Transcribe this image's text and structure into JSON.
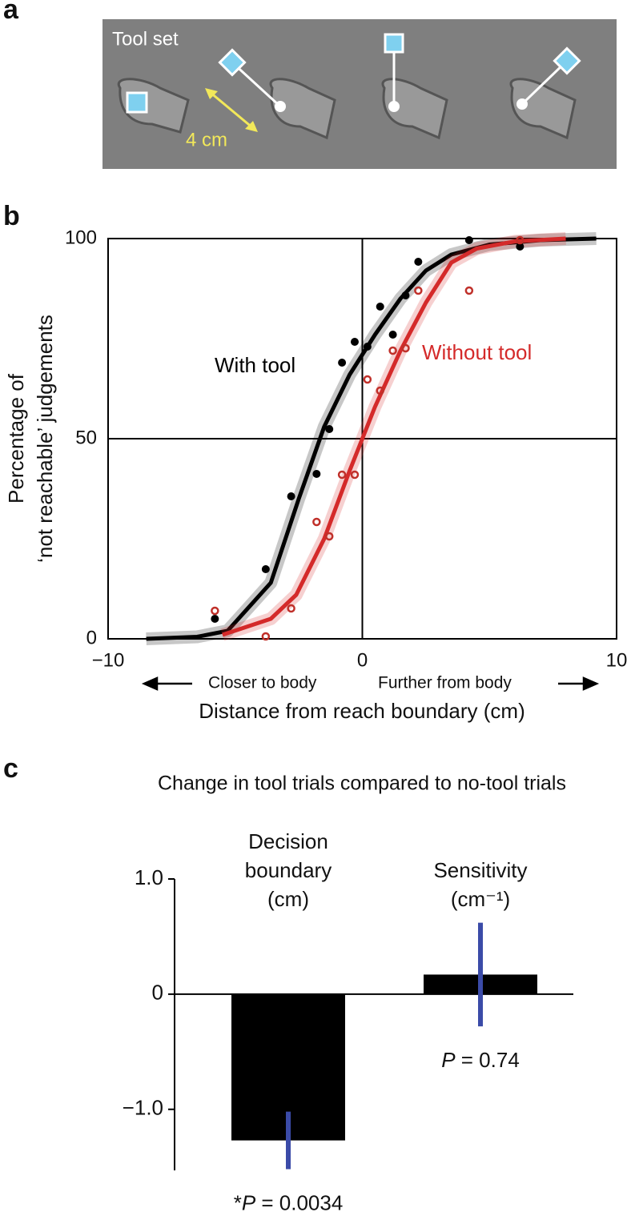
{
  "panel_labels": [
    "a",
    "b",
    "c"
  ],
  "tool_set": {
    "title": "Tool set",
    "scale_label": "4 cm"
  },
  "chart_data": [
    {
      "type": "line",
      "x_label": "Distance from reach boundary (cm)",
      "y_label": [
        "Percentage of",
        "‘not reachable’ judgements"
      ],
      "direction_labels": [
        "Closer to body",
        "Further from body"
      ],
      "xlim": [
        -10,
        10
      ],
      "xticks": [
        {
          "value": -10,
          "label": "−10"
        },
        0,
        10
      ],
      "ylim": [
        0,
        100
      ],
      "yticks": [
        0,
        50,
        100
      ],
      "vline": 0,
      "hline": 50,
      "series": [
        {
          "name": "With tool",
          "color": "#000000",
          "x": [
            -8.5,
            -6.5,
            -5.3,
            -3.6,
            -2.5,
            -1.5,
            -0.5,
            0.5,
            1.5,
            2.5,
            3.5,
            5,
            7,
            9.2
          ],
          "values": [
            0,
            0.5,
            2,
            14,
            35,
            53,
            66,
            76,
            85,
            92,
            96,
            98.5,
            99.6,
            100
          ]
        },
        {
          "name": "Without tool",
          "color": "#d42a2a",
          "x": [
            -5.5,
            -3.6,
            -2.6,
            -1.5,
            -0.5,
            0.5,
            1.5,
            2.5,
            3.5,
            4.5,
            6,
            8
          ],
          "values": [
            1,
            5,
            11,
            25,
            42,
            58,
            72,
            84,
            94,
            97.5,
            99.3,
            100
          ]
        }
      ],
      "points": [
        {
          "color": "#000000",
          "filled": true,
          "x": [
            -5.8,
            -3.8,
            -2.8,
            -1.8,
            -1.3,
            -0.8,
            -0.3,
            0.2,
            0.7,
            1.2,
            1.7,
            2.2,
            4.2,
            6.2
          ],
          "values": [
            5,
            17.4,
            35.6,
            41.2,
            52.4,
            69,
            74.2,
            73,
            83,
            76,
            85.8,
            94.2,
            99.6,
            98
          ]
        },
        {
          "color": "#c0302a",
          "filled": false,
          "x": [
            -5.8,
            -3.8,
            -2.8,
            -1.8,
            -1.3,
            -0.8,
            -0.3,
            0.2,
            0.7,
            1.2,
            1.7,
            2.2,
            4.2,
            6.2
          ],
          "values": [
            7,
            0.6,
            7.6,
            29.2,
            25.6,
            41,
            41,
            64.8,
            62,
            72,
            72.6,
            87,
            87,
            99.6
          ]
        }
      ]
    },
    {
      "type": "bar",
      "title": "Change in tool trials compared to no-tool trials",
      "categories": [
        [
          "Decision",
          "boundary",
          "(cm)"
        ],
        [
          "Sensitivity",
          "(cm⁻¹)"
        ]
      ],
      "values": [
        -1.27,
        0.17
      ],
      "errors": [
        0.25,
        0.45
      ],
      "color": "#000000",
      "error_color": "#3b4ba8",
      "p_labels": [
        {
          "star": "*",
          "symbol": "P",
          "text": " = 0.0034"
        },
        {
          "symbol": "P",
          "text": " = 0.74"
        }
      ],
      "ylim": [
        -1.53,
        1.0
      ],
      "yticks": [
        {
          "value": -1,
          "label": "−1.0"
        },
        0,
        {
          "value": 1,
          "label": "1.0"
        }
      ]
    }
  ]
}
